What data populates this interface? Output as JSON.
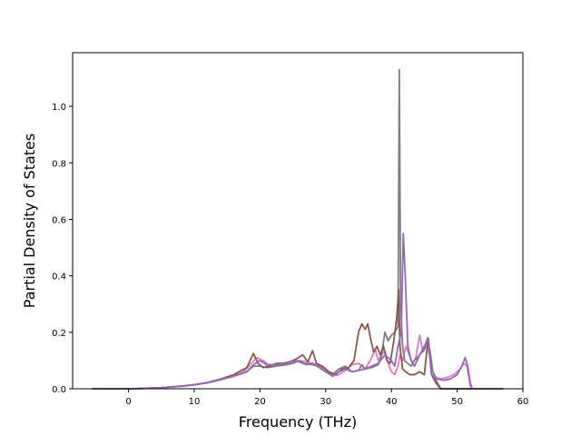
{
  "chart_data": {
    "type": "line",
    "xlabel": "Frequency (THz)",
    "ylabel": "Partial Density of States",
    "xlim": [
      -8.5,
      60
    ],
    "ylim": [
      0,
      1.19
    ],
    "xticks": [
      0,
      10,
      20,
      30,
      40,
      50,
      60
    ],
    "xtick_labels": [
      "0",
      "10",
      "20",
      "30",
      "40",
      "50",
      "60"
    ],
    "yticks": [
      0,
      0.2,
      0.4,
      0.6,
      0.8,
      1.0
    ],
    "ytick_labels": [
      "0.0",
      "0.2",
      "0.4",
      "0.6",
      "0.8",
      "1.0"
    ],
    "grid": false,
    "legend": "none",
    "series": [
      {
        "color": "#e377c2",
        "points": [
          [
            -5.5,
            0
          ],
          [
            0,
            0
          ],
          [
            2,
            0.001
          ],
          [
            5,
            0.004
          ],
          [
            8,
            0.009
          ],
          [
            10,
            0.015
          ],
          [
            12,
            0.022
          ],
          [
            14,
            0.033
          ],
          [
            16,
            0.045
          ],
          [
            17.5,
            0.06
          ],
          [
            18.5,
            0.085
          ],
          [
            19.5,
            0.11
          ],
          [
            20.5,
            0.1
          ],
          [
            21.5,
            0.08
          ],
          [
            23,
            0.085
          ],
          [
            24.5,
            0.095
          ],
          [
            26,
            0.1
          ],
          [
            27,
            0.095
          ],
          [
            28,
            0.09
          ],
          [
            29,
            0.085
          ],
          [
            30,
            0.065
          ],
          [
            31,
            0.045
          ],
          [
            32,
            0.05
          ],
          [
            33,
            0.065
          ],
          [
            34,
            0.085
          ],
          [
            35,
            0.09
          ],
          [
            36,
            0.07
          ],
          [
            37,
            0.11
          ],
          [
            37.5,
            0.14
          ],
          [
            38,
            0.1
          ],
          [
            38.5,
            0.12
          ],
          [
            39,
            0.135
          ],
          [
            39.5,
            0.09
          ],
          [
            40,
            0.06
          ],
          [
            40.5,
            0.05
          ],
          [
            41,
            0.08
          ],
          [
            41.3,
            0.12
          ],
          [
            41.7,
            0.1
          ],
          [
            42.2,
            0.15
          ],
          [
            42.7,
            0.12
          ],
          [
            43.2,
            0.09
          ],
          [
            43.7,
            0.11
          ],
          [
            44.3,
            0.19
          ],
          [
            44.8,
            0.13
          ],
          [
            45.3,
            0.15
          ],
          [
            45.8,
            0.12
          ],
          [
            46.3,
            0.06
          ],
          [
            46.8,
            0.04
          ],
          [
            47.5,
            0.035
          ],
          [
            48.5,
            0.04
          ],
          [
            49.5,
            0.05
          ],
          [
            50.5,
            0.07
          ],
          [
            51,
            0.09
          ],
          [
            51.5,
            0.08
          ],
          [
            52,
            0.01
          ],
          [
            52.3,
            0
          ],
          [
            57,
            0
          ]
        ]
      },
      {
        "color": "#7f7f7f",
        "points": [
          [
            -5.5,
            0
          ],
          [
            0,
            0
          ],
          [
            2,
            0.001
          ],
          [
            5,
            0.004
          ],
          [
            8,
            0.009
          ],
          [
            10,
            0.014
          ],
          [
            12,
            0.021
          ],
          [
            14,
            0.032
          ],
          [
            16,
            0.044
          ],
          [
            18,
            0.06
          ],
          [
            19,
            0.08
          ],
          [
            20,
            0.08
          ],
          [
            21,
            0.075
          ],
          [
            22.5,
            0.08
          ],
          [
            24,
            0.085
          ],
          [
            25,
            0.09
          ],
          [
            26,
            0.1
          ],
          [
            27,
            0.085
          ],
          [
            28,
            0.09
          ],
          [
            29,
            0.075
          ],
          [
            30,
            0.06
          ],
          [
            31,
            0.05
          ],
          [
            32,
            0.07
          ],
          [
            33,
            0.08
          ],
          [
            34,
            0.06
          ],
          [
            35,
            0.065
          ],
          [
            35.5,
            0.085
          ],
          [
            36,
            0.07
          ],
          [
            37,
            0.075
          ],
          [
            38,
            0.085
          ],
          [
            38.5,
            0.12
          ],
          [
            39,
            0.2
          ],
          [
            39.5,
            0.17
          ],
          [
            40,
            0.19
          ],
          [
            40.5,
            0.2
          ],
          [
            41,
            0.22
          ],
          [
            41.2,
            1.13
          ],
          [
            41.4,
            0.3
          ],
          [
            41.7,
            0.15
          ],
          [
            42,
            0.1
          ],
          [
            42.5,
            0.09
          ],
          [
            43,
            0.08
          ],
          [
            43.5,
            0.1
          ],
          [
            44.3,
            0.12
          ],
          [
            45,
            0.14
          ],
          [
            45.5,
            0.18
          ],
          [
            45.9,
            0.13
          ],
          [
            46.3,
            0.06
          ],
          [
            46.8,
            0.03
          ],
          [
            47.5,
            0
          ],
          [
            52,
            0
          ],
          [
            57,
            0
          ]
        ]
      },
      {
        "color": "#8c564b",
        "points": [
          [
            -5.5,
            0
          ],
          [
            0,
            0
          ],
          [
            2,
            0.001
          ],
          [
            5,
            0.004
          ],
          [
            8,
            0.009
          ],
          [
            10,
            0.014
          ],
          [
            12,
            0.022
          ],
          [
            14,
            0.034
          ],
          [
            16,
            0.05
          ],
          [
            18,
            0.075
          ],
          [
            19,
            0.125
          ],
          [
            19.7,
            0.09
          ],
          [
            20.5,
            0.075
          ],
          [
            21.5,
            0.08
          ],
          [
            22.5,
            0.09
          ],
          [
            23.5,
            0.09
          ],
          [
            24.5,
            0.095
          ],
          [
            25.5,
            0.105
          ],
          [
            26.5,
            0.12
          ],
          [
            27.3,
            0.095
          ],
          [
            28,
            0.135
          ],
          [
            28.6,
            0.09
          ],
          [
            29.5,
            0.08
          ],
          [
            30.5,
            0.06
          ],
          [
            31.5,
            0.05
          ],
          [
            32.5,
            0.07
          ],
          [
            33.5,
            0.075
          ],
          [
            34.3,
            0.1
          ],
          [
            35,
            0.2
          ],
          [
            35.5,
            0.23
          ],
          [
            36,
            0.21
          ],
          [
            36.4,
            0.23
          ],
          [
            36.8,
            0.18
          ],
          [
            37.3,
            0.13
          ],
          [
            37.8,
            0.15
          ],
          [
            38.3,
            0.12
          ],
          [
            38.8,
            0.15
          ],
          [
            39.3,
            0.1
          ],
          [
            39.8,
            0.09
          ],
          [
            40.3,
            0.16
          ],
          [
            40.8,
            0.25
          ],
          [
            41.1,
            0.35
          ],
          [
            41.3,
            0.15
          ],
          [
            41.7,
            0.07
          ],
          [
            42.2,
            0.06
          ],
          [
            42.8,
            0.05
          ],
          [
            43.5,
            0.05
          ],
          [
            44.3,
            0.06
          ],
          [
            45,
            0.05
          ],
          [
            45.6,
            0.18
          ],
          [
            46.1,
            0.05
          ],
          [
            46.8,
            0.02
          ],
          [
            47.5,
            0
          ],
          [
            57,
            0
          ]
        ]
      },
      {
        "color": "#9467bd",
        "points": [
          [
            -5.5,
            0
          ],
          [
            0,
            0
          ],
          [
            2,
            0.001
          ],
          [
            5,
            0.004
          ],
          [
            8,
            0.009
          ],
          [
            10,
            0.014
          ],
          [
            12,
            0.021
          ],
          [
            14,
            0.032
          ],
          [
            16,
            0.045
          ],
          [
            18,
            0.06
          ],
          [
            19,
            0.085
          ],
          [
            20,
            0.1
          ],
          [
            21,
            0.085
          ],
          [
            22.5,
            0.085
          ],
          [
            24,
            0.09
          ],
          [
            25.5,
            0.1
          ],
          [
            26.5,
            0.09
          ],
          [
            28,
            0.085
          ],
          [
            29,
            0.08
          ],
          [
            30,
            0.06
          ],
          [
            31,
            0.045
          ],
          [
            32,
            0.06
          ],
          [
            33,
            0.07
          ],
          [
            34,
            0.06
          ],
          [
            35,
            0.065
          ],
          [
            36,
            0.07
          ],
          [
            37,
            0.08
          ],
          [
            38,
            0.09
          ],
          [
            39,
            0.12
          ],
          [
            40,
            0.1
          ],
          [
            40.5,
            0.08
          ],
          [
            41,
            0.15
          ],
          [
            41.5,
            0.2
          ],
          [
            41.8,
            0.55
          ],
          [
            42.1,
            0.4
          ],
          [
            42.5,
            0.15
          ],
          [
            43,
            0.1
          ],
          [
            43.5,
            0.08
          ],
          [
            44.3,
            0.12
          ],
          [
            45,
            0.15
          ],
          [
            45.6,
            0.18
          ],
          [
            46.1,
            0.05
          ],
          [
            46.8,
            0.035
          ],
          [
            48,
            0.03
          ],
          [
            49,
            0.035
          ],
          [
            50,
            0.05
          ],
          [
            50.7,
            0.08
          ],
          [
            51.2,
            0.11
          ],
          [
            51.6,
            0.08
          ],
          [
            52,
            0.02
          ],
          [
            52.3,
            0
          ],
          [
            57,
            0
          ]
        ]
      }
    ]
  }
}
